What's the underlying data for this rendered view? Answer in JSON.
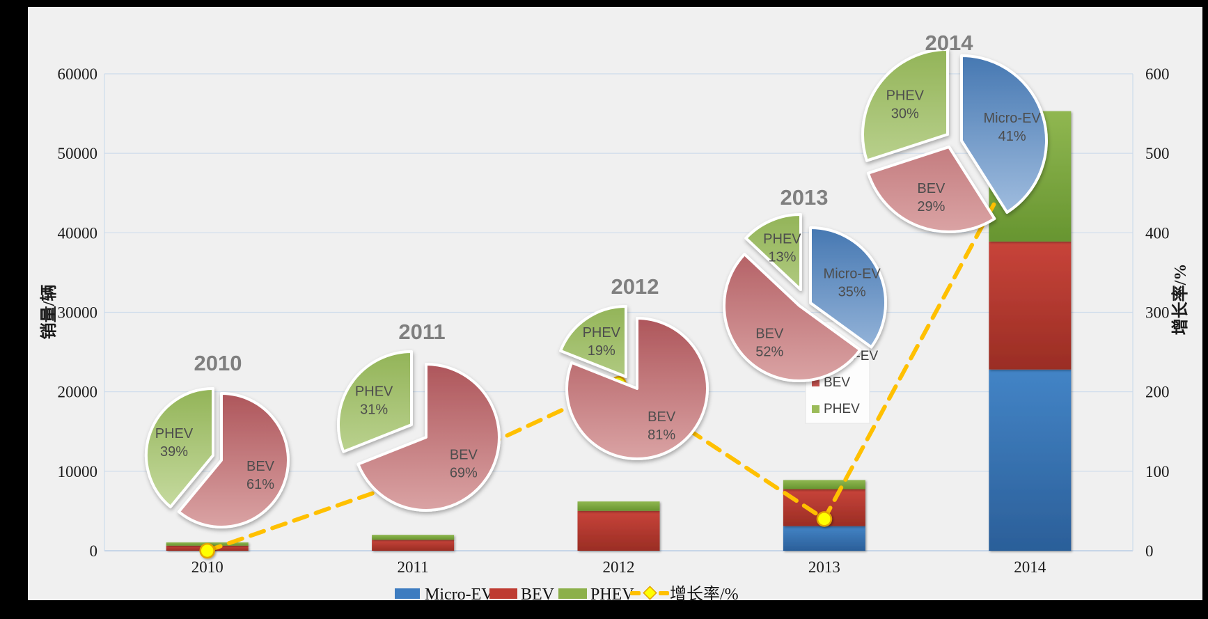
{
  "chart_data": {
    "type": "combo-stacked-bar-line-pies",
    "categories": [
      "2010",
      "2011",
      "2012",
      "2013",
      "2014"
    ],
    "bar_series": [
      {
        "name": "Micro-EV",
        "color_key": "blue",
        "values": [
          0,
          0,
          0,
          3100,
          22800
        ]
      },
      {
        "name": "BEV",
        "color_key": "red",
        "values": [
          640,
          1380,
          5020,
          4650,
          16100
        ]
      },
      {
        "name": "PHEV",
        "color_key": "green",
        "values": [
          410,
          620,
          1180,
          1150,
          16400
        ]
      }
    ],
    "totals": [
      1050,
      2000,
      6200,
      8900,
      55300
    ],
    "line_series": {
      "name": "增长率/%",
      "values": [
        0,
        90,
        210,
        40,
        520
      ]
    },
    "left_axis": {
      "title": "销量/辆",
      "min": 0,
      "max": 60000,
      "step": 10000,
      "ticks": [
        "0",
        "10000",
        "20000",
        "30000",
        "40000",
        "50000",
        "60000"
      ]
    },
    "right_axis": {
      "title": "增长率/%",
      "min": 0,
      "max": 600,
      "step": 100,
      "ticks": [
        "0",
        "100",
        "200",
        "300",
        "400",
        "500",
        "600"
      ]
    },
    "pies": [
      {
        "year": "2010",
        "slices": [
          {
            "name": "BEV",
            "pct": 61
          },
          {
            "name": "PHEV",
            "pct": 39
          }
        ]
      },
      {
        "year": "2011",
        "slices": [
          {
            "name": "BEV",
            "pct": 69
          },
          {
            "name": "PHEV",
            "pct": 31
          }
        ]
      },
      {
        "year": "2012",
        "slices": [
          {
            "name": "BEV",
            "pct": 81
          },
          {
            "name": "PHEV",
            "pct": 19
          }
        ]
      },
      {
        "year": "2013",
        "slices": [
          {
            "name": "Micro-EV",
            "pct": 35
          },
          {
            "name": "BEV",
            "pct": 52
          },
          {
            "name": "PHEV",
            "pct": 13
          }
        ]
      },
      {
        "year": "2014",
        "slices": [
          {
            "name": "Micro-EV",
            "pct": 41
          },
          {
            "name": "BEV",
            "pct": 29
          },
          {
            "name": "PHEV",
            "pct": 30
          }
        ]
      }
    ],
    "legend": [
      "Micro-EV",
      "BEV",
      "PHEV",
      "增长率/%"
    ],
    "pie_inner_legend": [
      "Micro-EV",
      "BEV",
      "PHEV"
    ],
    "colors": {
      "canvas": "#F0F0F0",
      "frame": "#000000",
      "gridline": "#CDDBEB",
      "axis_border": "#B8CCE4",
      "bar_blue_top": "#4384C6",
      "bar_blue_bottom": "#2B5F99",
      "bar_red_top": "#C8443A",
      "bar_red_bottom": "#9A2D24",
      "bar_green_top": "#90B751",
      "bar_green_bottom": "#679530",
      "pie_blue_top": "#4678B2",
      "pie_blue_bottom": "#A7C2E2",
      "pie_red_top": "#AE565B",
      "pie_red_bottom": "#DAA3A4",
      "pie_green_top": "#93B458",
      "pie_green_bottom": "#CCDFA8",
      "line": "#FFC000",
      "marker_fill": "#FFFF00",
      "marker_stroke": "#E3A300",
      "pie_title": "#7F7F7F",
      "pie_label": "#4D4D4D",
      "tick_text": "#1A1A1A",
      "inner_legend_blue": "#4F81BD",
      "inner_legend_red": "#C0504D",
      "inner_legend_green": "#9BBB59"
    }
  }
}
